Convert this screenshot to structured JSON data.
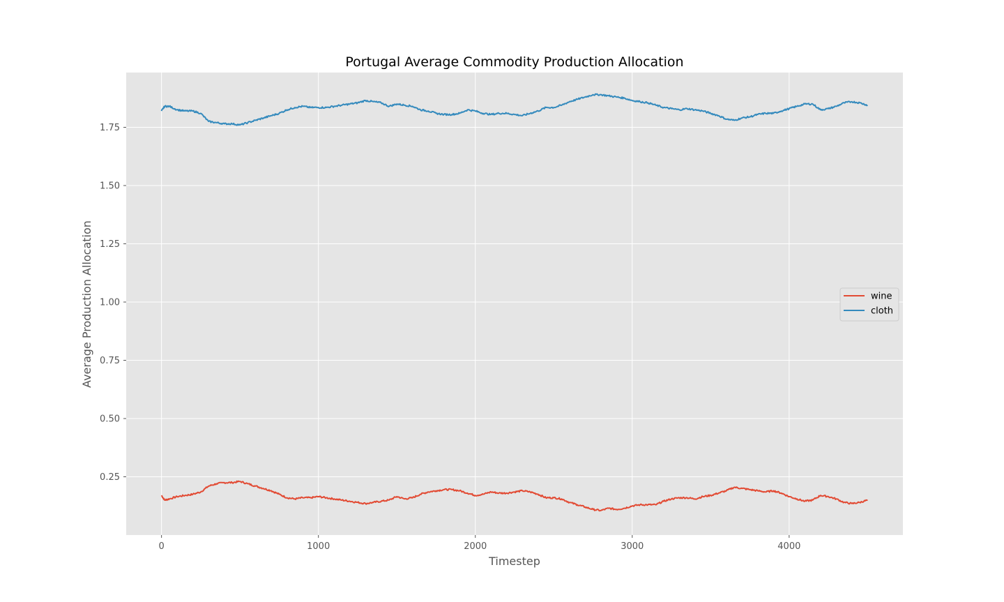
{
  "chart_data": {
    "type": "line",
    "title": "Portugal Average Commodity Production Allocation",
    "xlabel": "Timestep",
    "ylabel": "Average Production Allocation",
    "xlim": [
      -225,
      4725
    ],
    "ylim": [
      0.0,
      1.985
    ],
    "xticks": [
      0,
      1000,
      2000,
      3000,
      4000
    ],
    "xtick_labels": [
      "0",
      "1000",
      "2000",
      "3000",
      "4000"
    ],
    "yticks": [
      0.25,
      0.5,
      0.75,
      1.0,
      1.25,
      1.5,
      1.75
    ],
    "ytick_labels": [
      "0.25",
      "0.50",
      "0.75",
      "1.00",
      "1.25",
      "1.50",
      "1.75"
    ],
    "grid": true,
    "legend_position": "center-right",
    "background": "#e5e5e5",
    "series": [
      {
        "name": "wine",
        "color": "#e24a33",
        "x": [
          0,
          20,
          50,
          100,
          150,
          200,
          250,
          300,
          350,
          400,
          450,
          500,
          550,
          600,
          650,
          700,
          750,
          800,
          850,
          900,
          950,
          1000,
          1050,
          1100,
          1150,
          1200,
          1250,
          1300,
          1350,
          1400,
          1450,
          1500,
          1550,
          1600,
          1650,
          1700,
          1750,
          1800,
          1850,
          1900,
          1950,
          2000,
          2050,
          2100,
          2150,
          2200,
          2250,
          2300,
          2350,
          2400,
          2450,
          2500,
          2550,
          2600,
          2650,
          2700,
          2750,
          2800,
          2850,
          2900,
          2950,
          3000,
          3050,
          3100,
          3150,
          3200,
          3250,
          3300,
          3350,
          3400,
          3450,
          3500,
          3550,
          3600,
          3650,
          3700,
          3750,
          3800,
          3850,
          3900,
          3950,
          4000,
          4050,
          4100,
          4150,
          4200,
          4250,
          4300,
          4350,
          4400,
          4450,
          4500
        ],
        "values": [
          0.17,
          0.15,
          0.155,
          0.165,
          0.17,
          0.175,
          0.185,
          0.21,
          0.22,
          0.225,
          0.225,
          0.23,
          0.22,
          0.21,
          0.2,
          0.19,
          0.175,
          0.16,
          0.155,
          0.16,
          0.16,
          0.165,
          0.16,
          0.155,
          0.15,
          0.145,
          0.14,
          0.135,
          0.14,
          0.145,
          0.15,
          0.165,
          0.155,
          0.16,
          0.175,
          0.185,
          0.19,
          0.195,
          0.195,
          0.19,
          0.18,
          0.17,
          0.175,
          0.185,
          0.18,
          0.18,
          0.185,
          0.19,
          0.185,
          0.175,
          0.16,
          0.16,
          0.155,
          0.14,
          0.13,
          0.12,
          0.11,
          0.105,
          0.115,
          0.11,
          0.115,
          0.125,
          0.13,
          0.13,
          0.13,
          0.145,
          0.155,
          0.16,
          0.16,
          0.155,
          0.165,
          0.17,
          0.18,
          0.19,
          0.205,
          0.2,
          0.195,
          0.19,
          0.185,
          0.19,
          0.18,
          0.165,
          0.155,
          0.145,
          0.15,
          0.17,
          0.165,
          0.155,
          0.14,
          0.135,
          0.14,
          0.15
        ]
      },
      {
        "name": "cloth",
        "color": "#348abd",
        "x": [
          0,
          20,
          50,
          100,
          150,
          200,
          250,
          300,
          350,
          400,
          450,
          500,
          550,
          600,
          650,
          700,
          750,
          800,
          850,
          900,
          950,
          1000,
          1050,
          1100,
          1150,
          1200,
          1250,
          1300,
          1350,
          1400,
          1450,
          1500,
          1550,
          1600,
          1650,
          1700,
          1750,
          1800,
          1850,
          1900,
          1950,
          2000,
          2050,
          2100,
          2150,
          2200,
          2250,
          2300,
          2350,
          2400,
          2450,
          2500,
          2550,
          2600,
          2650,
          2700,
          2750,
          2800,
          2850,
          2900,
          2950,
          3000,
          3050,
          3100,
          3150,
          3200,
          3250,
          3300,
          3350,
          3400,
          3450,
          3500,
          3550,
          3600,
          3650,
          3700,
          3750,
          3800,
          3850,
          3900,
          3950,
          4000,
          4050,
          4100,
          4150,
          4200,
          4250,
          4300,
          4350,
          4400,
          4450,
          4500
        ],
        "values": [
          1.82,
          1.84,
          1.84,
          1.825,
          1.82,
          1.82,
          1.81,
          1.775,
          1.77,
          1.765,
          1.765,
          1.76,
          1.77,
          1.78,
          1.79,
          1.8,
          1.81,
          1.825,
          1.835,
          1.84,
          1.835,
          1.835,
          1.835,
          1.84,
          1.845,
          1.85,
          1.855,
          1.865,
          1.86,
          1.855,
          1.84,
          1.85,
          1.845,
          1.84,
          1.825,
          1.82,
          1.81,
          1.805,
          1.805,
          1.81,
          1.825,
          1.82,
          1.81,
          1.805,
          1.81,
          1.81,
          1.805,
          1.8,
          1.81,
          1.82,
          1.835,
          1.835,
          1.845,
          1.86,
          1.87,
          1.88,
          1.89,
          1.89,
          1.885,
          1.88,
          1.875,
          1.865,
          1.86,
          1.855,
          1.845,
          1.835,
          1.83,
          1.825,
          1.83,
          1.825,
          1.82,
          1.81,
          1.8,
          1.785,
          1.78,
          1.79,
          1.795,
          1.805,
          1.81,
          1.81,
          1.82,
          1.83,
          1.84,
          1.85,
          1.85,
          1.825,
          1.83,
          1.84,
          1.855,
          1.86,
          1.855,
          1.845
        ]
      }
    ]
  }
}
